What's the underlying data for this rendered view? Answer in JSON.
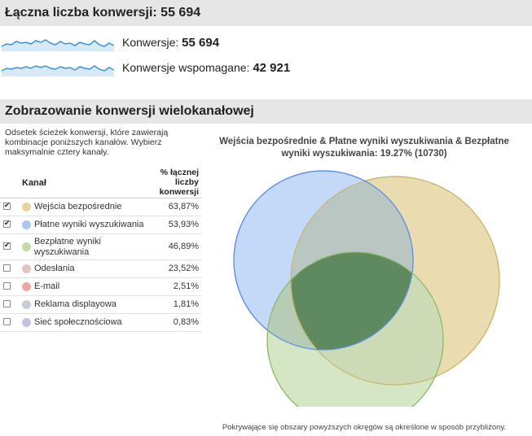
{
  "summary": {
    "title": "Łączna liczba konwersji: 55 694",
    "metrics": [
      {
        "label": "Konwersje:",
        "value": "55 694"
      },
      {
        "label": "Konwersje wspomagane:",
        "value": "42 921"
      }
    ]
  },
  "multichannel": {
    "title": "Zobrazowanie konwersji wielokanałowej",
    "intro": "Odsetek ścieżek konwersji, które zawierają kombinacje poniższych kanałów. Wybierz maksymalnie cztery kanały.",
    "col_channel": "Kanał",
    "col_share": "% łącznej liczby konwersji",
    "channels": [
      {
        "name": "Wejścia bezpośrednie",
        "pct": "63,87%",
        "checked": true,
        "color": "#e8d49a"
      },
      {
        "name": "Płatne wyniki wyszukiwania",
        "pct": "53,93%",
        "checked": true,
        "color": "#a9c8f4"
      },
      {
        "name": "Bezpłatne wyniki wyszukiwania",
        "pct": "46,89%",
        "checked": true,
        "color": "#bfdca6"
      },
      {
        "name": "Odesłania",
        "pct": "23,52%",
        "checked": false,
        "color": "#e6c2c2"
      },
      {
        "name": "E-mail",
        "pct": "2,51%",
        "checked": false,
        "color": "#f1a6a6"
      },
      {
        "name": "Reklama displayowa",
        "pct": "1,81%",
        "checked": false,
        "color": "#c6cfd8"
      },
      {
        "name": "Sieć społecznościowa",
        "pct": "0,83%",
        "checked": false,
        "color": "#c6c0e8"
      }
    ],
    "venn": {
      "title": "Wejścia bezpośrednie & Płatne wyniki wyszukiwania & Bezpłatne wyniki wyszukiwania: 19.27% (10730)",
      "note": "Pokrywające się obszary powyższych okręgów są określone w sposób przybliżony.",
      "colors": {
        "direct_fill": "#eadcb0",
        "direct_stroke": "#c8b56a",
        "paid_fill": "#c4d8f7",
        "paid_stroke": "#5b8ee6",
        "organic_fill": "#d4e6c4",
        "organic_stroke": "#8cbb6a",
        "intersection": "#5f8a5f",
        "sparkline": "#3a93d4"
      }
    }
  }
}
